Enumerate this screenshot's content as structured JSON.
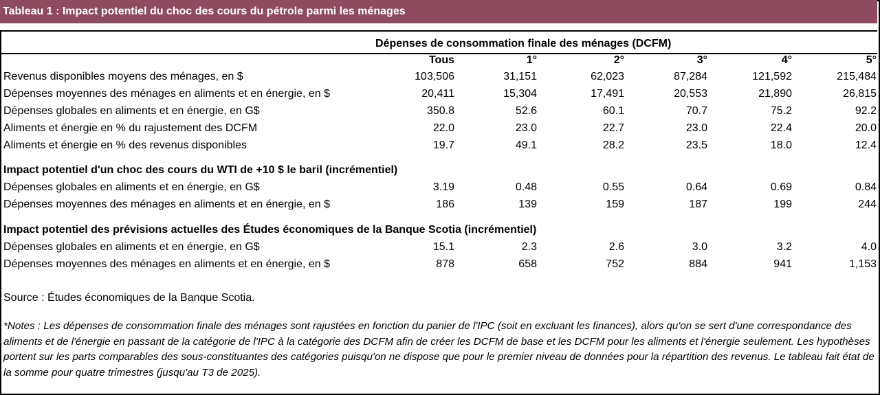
{
  "title": "Tableau 1 : Impact potentiel du choc des cours du pétrole parmi les ménages",
  "group_header": "Dépenses de consommation finale des ménages (DCFM)",
  "columns": [
    "Tous",
    "1°",
    "2°",
    "3°",
    "4°",
    "5°"
  ],
  "sections": [
    {
      "heading": "",
      "rows": [
        {
          "label": "Revenus disponibles moyens des ménages, en $",
          "values": [
            "103,506",
            "31,151",
            "62,023",
            "87,284",
            "121,592",
            "215,484"
          ]
        },
        {
          "label": "Dépenses moyennes des ménages en aliments et en énergie, en $",
          "values": [
            "20,411",
            "15,304",
            "17,491",
            "20,553",
            "21,890",
            "26,815"
          ]
        },
        {
          "label": "Dépenses globales en aliments et en énergie, en G$",
          "values": [
            "350.8",
            "52.6",
            "60.1",
            "70.7",
            "75.2",
            "92.2"
          ]
        },
        {
          "label": "Aliments et énergie en % du rajustement des DCFM",
          "values": [
            "22.0",
            "23.0",
            "22.7",
            "23.0",
            "22.4",
            "20.0"
          ]
        },
        {
          "label": "Aliments et énergie en % des revenus disponibles",
          "values": [
            "19.7",
            "49.1",
            "28.2",
            "23.5",
            "18.0",
            "12.4"
          ]
        }
      ]
    },
    {
      "heading": "Impact potentiel d'un choc des cours du WTI de +10 $ le baril (incrémentiel)",
      "rows": [
        {
          "label": "Dépenses globales en aliments et en énergie, en G$",
          "values": [
            "3.19",
            "0.48",
            "0.55",
            "0.64",
            "0.69",
            "0.84"
          ]
        },
        {
          "label": "Dépenses moyennes des ménages en aliments et en énergie, en $",
          "values": [
            "186",
            "139",
            "159",
            "187",
            "199",
            "244"
          ]
        }
      ]
    },
    {
      "heading": "Impact potentiel des prévisions actuelles des Études économiques de la Banque Scotia (incrémentiel)",
      "rows": [
        {
          "label": "Dépenses globales en aliments et en énergie, en G$",
          "values": [
            "15.1",
            "2.3",
            "2.6",
            "3.0",
            "3.2",
            "4.0"
          ]
        },
        {
          "label": "Dépenses moyennes des ménages en aliments et en énergie, en $",
          "values": [
            "878",
            "658",
            "752",
            "884",
            "941",
            "1,153"
          ]
        }
      ]
    }
  ],
  "source": "Source : Études économiques de la Banque Scotia.",
  "notes": "*Notes : Les dépenses de consommation finale des ménages sont rajustées en fonction du panier de l'IPC (soit en excluant les finances), alors qu'on se sert d'une correspondance des aliments et de l'énergie en passant de la catégorie de l'IPC à la catégorie des DCFM afin de créer les DCFM de base et les DCFM pour les aliments et l'énergie seulement. Les hypothèses portent sur les parts comparables des sous-constituantes des catégories puisqu'on ne dispose que pour le premier niveau de données pour la répartition des revenus. Le tableau fait état de la somme pour quatre trimestres (jusqu'au T3 de 2025).",
  "colors": {
    "title_bg": "#8e4a5e",
    "title_text": "#ffffff"
  }
}
